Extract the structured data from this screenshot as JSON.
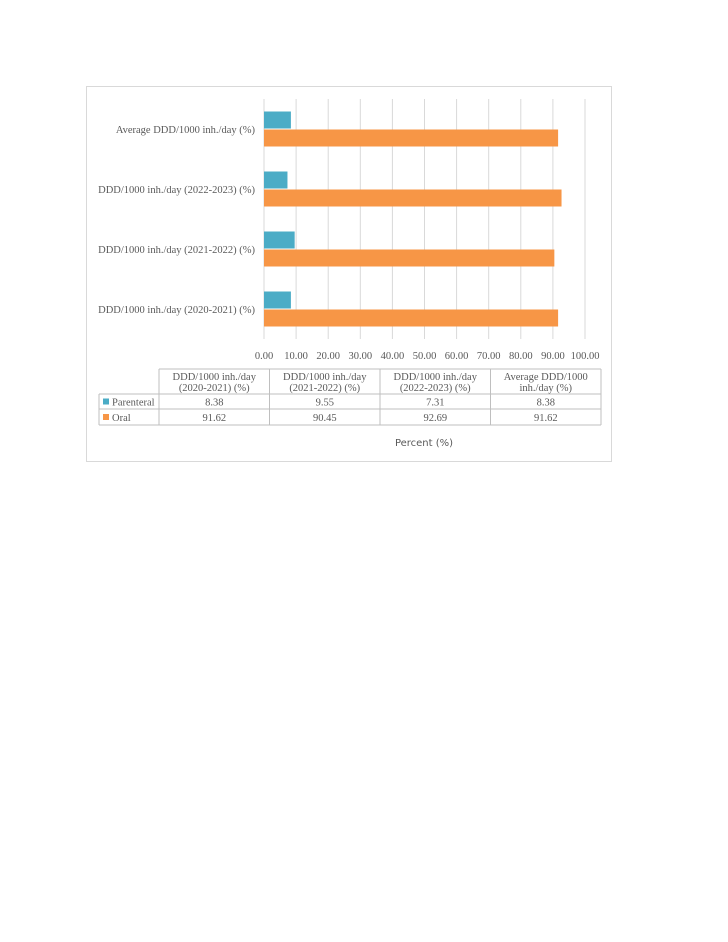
{
  "chart_data": {
    "type": "bar",
    "orientation": "horizontal",
    "categories": [
      "DDD/1000 inh./day (2020-2021) (%)",
      "DDD/1000 inh./day (2021-2022) (%)",
      "DDD/1000 inh./day (2022-2023) (%)",
      "Average DDD/1000 inh./day  (%)"
    ],
    "series": [
      {
        "name": "Parenteral",
        "color": "#4bacc6",
        "values": [
          8.38,
          9.55,
          7.31,
          8.38
        ]
      },
      {
        "name": "Oral",
        "color": "#f79646",
        "values": [
          91.62,
          90.45,
          92.69,
          91.62
        ]
      }
    ],
    "xlim": [
      0,
      100
    ],
    "xticks": [
      "0.00",
      "10.00",
      "20.00",
      "30.00",
      "40.00",
      "50.00",
      "60.00",
      "70.00",
      "80.00",
      "90.00",
      "100.00"
    ],
    "xlabel": "Percent (%)",
    "grid": true,
    "data_table": {
      "headers": [
        [
          "DDD/1000 inh./day",
          "(2020-2021) (%)"
        ],
        [
          "DDD/1000 inh./day",
          "(2021-2022) (%)"
        ],
        [
          "DDD/1000 inh./day",
          "(2022-2023) (%)"
        ],
        [
          "Average DDD/1000",
          "inh./day  (%)"
        ]
      ],
      "rows": [
        {
          "label": "Parenteral",
          "values": [
            "8.38",
            "9.55",
            "7.31",
            "8.38"
          ]
        },
        {
          "label": "Oral",
          "values": [
            "91.62",
            "90.45",
            "92.69",
            "91.62"
          ]
        }
      ]
    }
  }
}
